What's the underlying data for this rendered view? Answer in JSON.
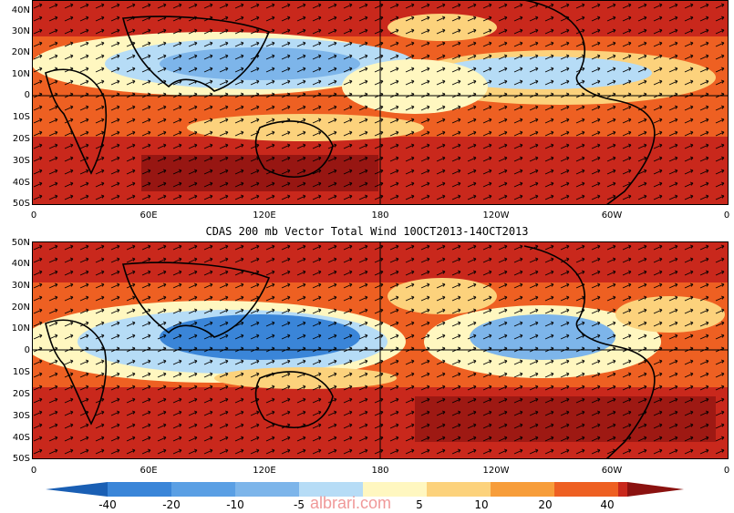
{
  "title": "CDAS 200 mb Vector Total Wind 10OCT2013-14OCT2013",
  "lat_labels": [
    "50N",
    "40N",
    "30N",
    "20N",
    "10N",
    "0",
    "10S",
    "20S",
    "30S",
    "40S",
    "50S"
  ],
  "lon_labels": [
    "0",
    "60E",
    "120E",
    "180",
    "120W",
    "60W",
    "0"
  ],
  "colorbar": {
    "labels": [
      "-40",
      "-20",
      "-10",
      "-5",
      "5",
      "10",
      "20",
      "40"
    ],
    "colors": [
      "#1a5fb4",
      "#3a85d8",
      "#7db5ea",
      "#b6dcf6",
      "#e9f6fb",
      "#fff7c0",
      "#fcd27c",
      "#f79d3a",
      "#ee6022",
      "#c9281c",
      "#8b1210"
    ]
  },
  "watermark": "albrari.com"
}
